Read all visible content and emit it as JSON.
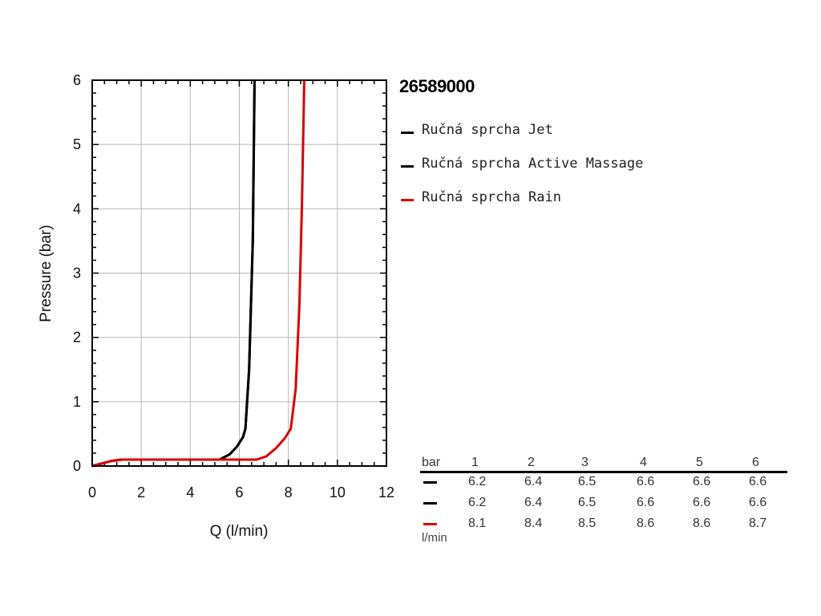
{
  "title": "26589000",
  "chart_data": {
    "type": "line",
    "xlabel": "Q (l/min)",
    "ylabel": "Pressure (bar)",
    "xlim": [
      0,
      12
    ],
    "ylim": [
      0,
      6
    ],
    "x_ticks": [
      "0",
      "2",
      "4",
      "6",
      "8",
      "10",
      "12"
    ],
    "y_ticks": [
      "0",
      "1",
      "2",
      "3",
      "4",
      "5",
      "6"
    ],
    "grid": true,
    "legend_position": "right",
    "series": [
      {
        "name": "Ručná sprcha Jet",
        "color": "#000000",
        "points": [
          [
            0,
            0
          ],
          [
            0.4,
            0.04
          ],
          [
            0.8,
            0.08
          ],
          [
            1.2,
            0.1
          ],
          [
            2,
            0.1
          ],
          [
            4,
            0.1
          ],
          [
            5.2,
            0.1
          ],
          [
            5.6,
            0.18
          ],
          [
            5.9,
            0.3
          ],
          [
            6.15,
            0.45
          ],
          [
            6.25,
            0.58
          ],
          [
            6.4,
            1.5
          ],
          [
            6.55,
            3.5
          ],
          [
            6.62,
            6.0
          ]
        ]
      },
      {
        "name": "Ručná sprcha Active Massage",
        "color": "#000000",
        "points": [
          [
            0,
            0
          ],
          [
            0.4,
            0.04
          ],
          [
            0.8,
            0.08
          ],
          [
            1.2,
            0.1
          ],
          [
            2,
            0.1
          ],
          [
            4,
            0.1
          ],
          [
            5.2,
            0.1
          ],
          [
            5.6,
            0.18
          ],
          [
            5.9,
            0.3
          ],
          [
            6.15,
            0.45
          ],
          [
            6.25,
            0.58
          ],
          [
            6.4,
            1.5
          ],
          [
            6.55,
            3.5
          ],
          [
            6.62,
            6.0
          ]
        ]
      },
      {
        "name": "Ručná sprcha Rain",
        "color": "#dd0000",
        "points": [
          [
            0,
            0
          ],
          [
            0.4,
            0.04
          ],
          [
            0.8,
            0.08
          ],
          [
            1.2,
            0.1
          ],
          [
            2,
            0.1
          ],
          [
            4,
            0.1
          ],
          [
            6.7,
            0.1
          ],
          [
            7.1,
            0.15
          ],
          [
            7.5,
            0.28
          ],
          [
            7.85,
            0.43
          ],
          [
            8.1,
            0.58
          ],
          [
            8.3,
            1.2
          ],
          [
            8.45,
            2.5
          ],
          [
            8.55,
            4.0
          ],
          [
            8.65,
            6.0
          ]
        ]
      }
    ]
  },
  "table": {
    "header_label": "bar",
    "unit_label": "l/min",
    "pressures": [
      "1",
      "2",
      "3",
      "4",
      "5",
      "6"
    ],
    "rows": [
      {
        "color": "#000000",
        "values": [
          "6.2",
          "6.4",
          "6.5",
          "6.6",
          "6.6",
          "6.6"
        ]
      },
      {
        "color": "#000000",
        "values": [
          "6.2",
          "6.4",
          "6.5",
          "6.6",
          "6.6",
          "6.6"
        ]
      },
      {
        "color": "#dd0000",
        "values": [
          "8.1",
          "8.4",
          "8.5",
          "8.6",
          "8.6",
          "8.7"
        ]
      }
    ]
  }
}
